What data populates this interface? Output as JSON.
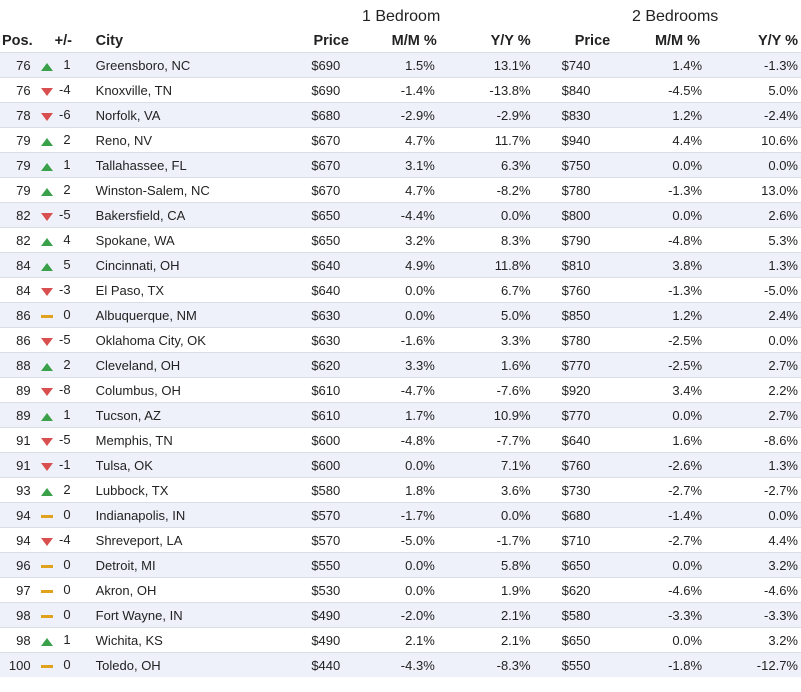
{
  "group_headers": {
    "one_bedroom": "1 Bedroom",
    "two_bedrooms": "2 Bedrooms"
  },
  "columns": [
    "Pos.",
    "+/-",
    "City",
    "Price",
    "M/M %",
    "Y/Y %",
    "Price",
    "M/M %",
    "Y/Y %"
  ],
  "colors": {
    "up": "#3aa14a",
    "down": "#d94f4f",
    "same": "#e0a21c",
    "stripe": "#eef1f9"
  },
  "rows": [
    {
      "pos": "76",
      "trend": "up",
      "change": "1",
      "city": "Greensboro, NC",
      "p1": "$690",
      "mm1": "1.5%",
      "yy1": "13.1%",
      "p2": "$740",
      "mm2": "1.4%",
      "yy2": "-1.3%"
    },
    {
      "pos": "76",
      "trend": "down",
      "change": "-4",
      "city": "Knoxville, TN",
      "p1": "$690",
      "mm1": "-1.4%",
      "yy1": "-13.8%",
      "p2": "$840",
      "mm2": "-4.5%",
      "yy2": "5.0%"
    },
    {
      "pos": "78",
      "trend": "down",
      "change": "-6",
      "city": "Norfolk, VA",
      "p1": "$680",
      "mm1": "-2.9%",
      "yy1": "-2.9%",
      "p2": "$830",
      "mm2": "1.2%",
      "yy2": "-2.4%"
    },
    {
      "pos": "79",
      "trend": "up",
      "change": "2",
      "city": "Reno, NV",
      "p1": "$670",
      "mm1": "4.7%",
      "yy1": "11.7%",
      "p2": "$940",
      "mm2": "4.4%",
      "yy2": "10.6%"
    },
    {
      "pos": "79",
      "trend": "up",
      "change": "1",
      "city": "Tallahassee, FL",
      "p1": "$670",
      "mm1": "3.1%",
      "yy1": "6.3%",
      "p2": "$750",
      "mm2": "0.0%",
      "yy2": "0.0%"
    },
    {
      "pos": "79",
      "trend": "up",
      "change": "2",
      "city": "Winston-Salem, NC",
      "p1": "$670",
      "mm1": "4.7%",
      "yy1": "-8.2%",
      "p2": "$780",
      "mm2": "-1.3%",
      "yy2": "13.0%"
    },
    {
      "pos": "82",
      "trend": "down",
      "change": "-5",
      "city": "Bakersfield, CA",
      "p1": "$650",
      "mm1": "-4.4%",
      "yy1": "0.0%",
      "p2": "$800",
      "mm2": "0.0%",
      "yy2": "2.6%"
    },
    {
      "pos": "82",
      "trend": "up",
      "change": "4",
      "city": "Spokane, WA",
      "p1": "$650",
      "mm1": "3.2%",
      "yy1": "8.3%",
      "p2": "$790",
      "mm2": "-4.8%",
      "yy2": "5.3%"
    },
    {
      "pos": "84",
      "trend": "up",
      "change": "5",
      "city": "Cincinnati, OH",
      "p1": "$640",
      "mm1": "4.9%",
      "yy1": "11.8%",
      "p2": "$810",
      "mm2": "3.8%",
      "yy2": "1.3%"
    },
    {
      "pos": "84",
      "trend": "down",
      "change": "-3",
      "city": "El Paso, TX",
      "p1": "$640",
      "mm1": "0.0%",
      "yy1": "6.7%",
      "p2": "$760",
      "mm2": "-1.3%",
      "yy2": "-5.0%"
    },
    {
      "pos": "86",
      "trend": "same",
      "change": "0",
      "city": "Albuquerque, NM",
      "p1": "$630",
      "mm1": "0.0%",
      "yy1": "5.0%",
      "p2": "$850",
      "mm2": "1.2%",
      "yy2": "2.4%"
    },
    {
      "pos": "86",
      "trend": "down",
      "change": "-5",
      "city": "Oklahoma City, OK",
      "p1": "$630",
      "mm1": "-1.6%",
      "yy1": "3.3%",
      "p2": "$780",
      "mm2": "-2.5%",
      "yy2": "0.0%"
    },
    {
      "pos": "88",
      "trend": "up",
      "change": "2",
      "city": "Cleveland, OH",
      "p1": "$620",
      "mm1": "3.3%",
      "yy1": "1.6%",
      "p2": "$770",
      "mm2": "-2.5%",
      "yy2": "2.7%"
    },
    {
      "pos": "89",
      "trend": "down",
      "change": "-8",
      "city": "Columbus, OH",
      "p1": "$610",
      "mm1": "-4.7%",
      "yy1": "-7.6%",
      "p2": "$920",
      "mm2": "3.4%",
      "yy2": "2.2%"
    },
    {
      "pos": "89",
      "trend": "up",
      "change": "1",
      "city": "Tucson, AZ",
      "p1": "$610",
      "mm1": "1.7%",
      "yy1": "10.9%",
      "p2": "$770",
      "mm2": "0.0%",
      "yy2": "2.7%"
    },
    {
      "pos": "91",
      "trend": "down",
      "change": "-5",
      "city": "Memphis, TN",
      "p1": "$600",
      "mm1": "-4.8%",
      "yy1": "-7.7%",
      "p2": "$640",
      "mm2": "1.6%",
      "yy2": "-8.6%"
    },
    {
      "pos": "91",
      "trend": "down",
      "change": "-1",
      "city": "Tulsa, OK",
      "p1": "$600",
      "mm1": "0.0%",
      "yy1": "7.1%",
      "p2": "$760",
      "mm2": "-2.6%",
      "yy2": "1.3%"
    },
    {
      "pos": "93",
      "trend": "up",
      "change": "2",
      "city": "Lubbock, TX",
      "p1": "$580",
      "mm1": "1.8%",
      "yy1": "3.6%",
      "p2": "$730",
      "mm2": "-2.7%",
      "yy2": "-2.7%"
    },
    {
      "pos": "94",
      "trend": "same",
      "change": "0",
      "city": "Indianapolis, IN",
      "p1": "$570",
      "mm1": "-1.7%",
      "yy1": "0.0%",
      "p2": "$680",
      "mm2": "-1.4%",
      "yy2": "0.0%"
    },
    {
      "pos": "94",
      "trend": "down",
      "change": "-4",
      "city": "Shreveport, LA",
      "p1": "$570",
      "mm1": "-5.0%",
      "yy1": "-1.7%",
      "p2": "$710",
      "mm2": "-2.7%",
      "yy2": "4.4%"
    },
    {
      "pos": "96",
      "trend": "same",
      "change": "0",
      "city": "Detroit, MI",
      "p1": "$550",
      "mm1": "0.0%",
      "yy1": "5.8%",
      "p2": "$650",
      "mm2": "0.0%",
      "yy2": "3.2%"
    },
    {
      "pos": "97",
      "trend": "same",
      "change": "0",
      "city": "Akron, OH",
      "p1": "$530",
      "mm1": "0.0%",
      "yy1": "1.9%",
      "p2": "$620",
      "mm2": "-4.6%",
      "yy2": "-4.6%"
    },
    {
      "pos": "98",
      "trend": "same",
      "change": "0",
      "city": "Fort Wayne, IN",
      "p1": "$490",
      "mm1": "-2.0%",
      "yy1": "2.1%",
      "p2": "$580",
      "mm2": "-3.3%",
      "yy2": "-3.3%"
    },
    {
      "pos": "98",
      "trend": "up",
      "change": "1",
      "city": "Wichita, KS",
      "p1": "$490",
      "mm1": "2.1%",
      "yy1": "2.1%",
      "p2": "$650",
      "mm2": "0.0%",
      "yy2": "3.2%"
    },
    {
      "pos": "100",
      "trend": "same",
      "change": "0",
      "city": "Toledo, OH",
      "p1": "$440",
      "mm1": "-4.3%",
      "yy1": "-8.3%",
      "p2": "$550",
      "mm2": "-1.8%",
      "yy2": "-12.7%"
    }
  ]
}
